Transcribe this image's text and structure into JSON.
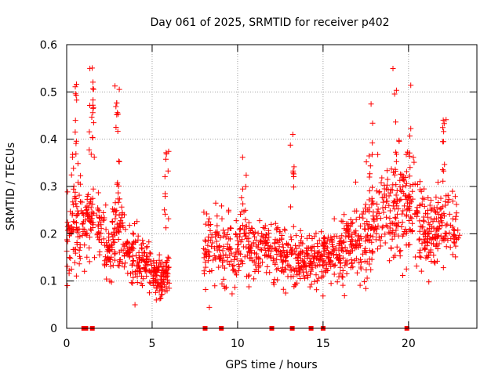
{
  "chart_data": {
    "type": "scatter",
    "title": "Day 061 of 2025, SRMTID for receiver p402",
    "xlabel": "GPS time / hours",
    "ylabel": "SRMTID / TECUs",
    "xlim": [
      0,
      24
    ],
    "ylim": [
      0,
      0.6
    ],
    "xticks": [
      0,
      5,
      10,
      15,
      20
    ],
    "yticks": [
      0,
      0.1,
      0.2,
      0.3,
      0.4,
      0.5,
      0.6
    ],
    "xtick_labels": [
      "0",
      "5",
      "10",
      "15",
      "20"
    ],
    "ytick_labels": [
      "0",
      "0.1",
      "0.2",
      "0.3",
      "0.4",
      "0.5",
      "0.6"
    ],
    "grid": true,
    "marker": "+",
    "marker_color": "#ff0000",
    "zero_markers_x": [
      1.0,
      1.12,
      1.5,
      8.1,
      9.05,
      12.0,
      13.2,
      14.3,
      15.0,
      19.9
    ],
    "segments": [
      {
        "start": 0.0,
        "end": 6.0,
        "centers": [
          [
            0.0,
            0.16
          ],
          [
            0.5,
            0.24
          ],
          [
            1.0,
            0.2
          ],
          [
            1.5,
            0.26
          ],
          [
            2.0,
            0.2
          ],
          [
            2.5,
            0.16
          ],
          [
            3.0,
            0.22
          ],
          [
            3.5,
            0.17
          ],
          [
            4.0,
            0.16
          ],
          [
            4.5,
            0.15
          ],
          [
            5.0,
            0.12
          ],
          [
            5.5,
            0.1
          ],
          [
            6.0,
            0.12
          ]
        ],
        "spreads": [
          [
            0.0,
            0.08
          ],
          [
            0.5,
            0.12
          ],
          [
            1.0,
            0.09
          ],
          [
            1.5,
            0.1
          ],
          [
            2.0,
            0.07
          ],
          [
            2.5,
            0.05
          ],
          [
            3.0,
            0.09
          ],
          [
            3.5,
            0.05
          ],
          [
            4.0,
            0.05
          ],
          [
            4.5,
            0.05
          ],
          [
            5.0,
            0.04
          ],
          [
            5.5,
            0.04
          ],
          [
            6.0,
            0.04
          ]
        ],
        "count": 480
      },
      {
        "start": 8.0,
        "end": 16.0,
        "centers": [
          [
            8.0,
            0.17
          ],
          [
            9.0,
            0.18
          ],
          [
            10.0,
            0.17
          ],
          [
            11.0,
            0.17
          ],
          [
            12.0,
            0.17
          ],
          [
            13.0,
            0.15
          ],
          [
            14.0,
            0.14
          ],
          [
            15.0,
            0.15
          ],
          [
            16.0,
            0.17
          ]
        ],
        "spreads": [
          [
            8.0,
            0.06
          ],
          [
            9.0,
            0.07
          ],
          [
            10.0,
            0.07
          ],
          [
            11.0,
            0.06
          ],
          [
            12.0,
            0.06
          ],
          [
            13.0,
            0.06
          ],
          [
            14.0,
            0.05
          ],
          [
            15.0,
            0.05
          ],
          [
            16.0,
            0.05
          ]
        ],
        "count": 560
      },
      {
        "start": 16.0,
        "end": 23.0,
        "centers": [
          [
            16.0,
            0.16
          ],
          [
            17.0,
            0.18
          ],
          [
            18.0,
            0.22
          ],
          [
            19.0,
            0.25
          ],
          [
            20.0,
            0.26
          ],
          [
            21.0,
            0.2
          ],
          [
            22.0,
            0.22
          ],
          [
            23.0,
            0.2
          ]
        ],
        "spreads": [
          [
            16.0,
            0.06
          ],
          [
            17.0,
            0.08
          ],
          [
            18.0,
            0.1
          ],
          [
            19.0,
            0.11
          ],
          [
            20.0,
            0.1
          ],
          [
            21.0,
            0.07
          ],
          [
            22.0,
            0.08
          ],
          [
            23.0,
            0.05
          ]
        ],
        "count": 520
      }
    ],
    "peaks": [
      {
        "x": 0.45,
        "ymax": 0.53,
        "n": 22
      },
      {
        "x": 1.45,
        "ymax": 0.57,
        "n": 22
      },
      {
        "x": 2.95,
        "ymax": 0.52,
        "n": 18
      },
      {
        "x": 5.85,
        "ymax": 0.39,
        "n": 12
      },
      {
        "x": 10.4,
        "ymax": 0.38,
        "n": 10
      },
      {
        "x": 13.2,
        "ymax": 0.44,
        "n": 10
      },
      {
        "x": 17.8,
        "ymax": 0.48,
        "n": 12
      },
      {
        "x": 19.2,
        "ymax": 0.58,
        "n": 14
      },
      {
        "x": 20.0,
        "ymax": 0.56,
        "n": 14
      },
      {
        "x": 22.1,
        "ymax": 0.46,
        "n": 12
      }
    ],
    "seed": 61
  }
}
